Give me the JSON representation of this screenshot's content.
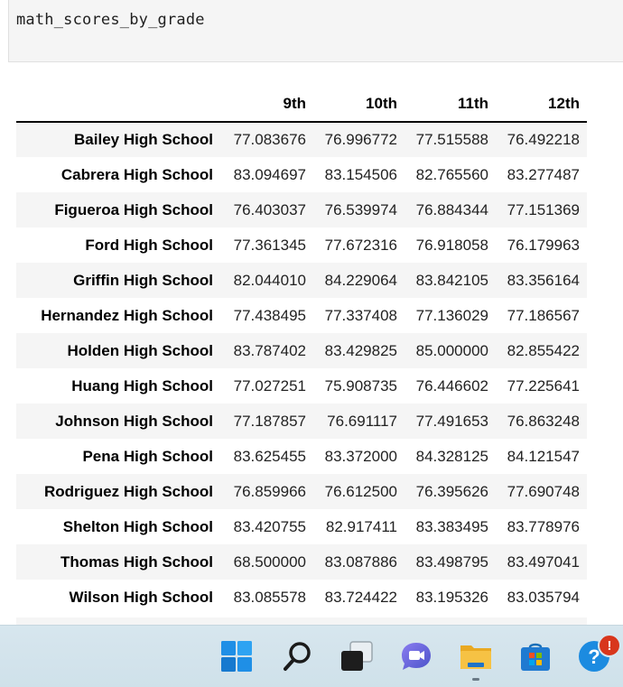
{
  "code_cell": {
    "source": "math_scores_by_grade"
  },
  "table": {
    "columns": [
      "9th",
      "10th",
      "11th",
      "12th"
    ],
    "rows": [
      {
        "school": "Bailey High School",
        "values": [
          "77.083676",
          "76.996772",
          "77.515588",
          "76.492218"
        ]
      },
      {
        "school": "Cabrera High School",
        "values": [
          "83.094697",
          "83.154506",
          "82.765560",
          "83.277487"
        ]
      },
      {
        "school": "Figueroa High School",
        "values": [
          "76.403037",
          "76.539974",
          "76.884344",
          "77.151369"
        ]
      },
      {
        "school": "Ford High School",
        "values": [
          "77.361345",
          "77.672316",
          "76.918058",
          "76.179963"
        ]
      },
      {
        "school": "Griffin High School",
        "values": [
          "82.044010",
          "84.229064",
          "83.842105",
          "83.356164"
        ]
      },
      {
        "school": "Hernandez High School",
        "values": [
          "77.438495",
          "77.337408",
          "77.136029",
          "77.186567"
        ]
      },
      {
        "school": "Holden High School",
        "values": [
          "83.787402",
          "83.429825",
          "85.000000",
          "82.855422"
        ]
      },
      {
        "school": "Huang High School",
        "values": [
          "77.027251",
          "75.908735",
          "76.446602",
          "77.225641"
        ]
      },
      {
        "school": "Johnson High School",
        "values": [
          "77.187857",
          "76.691117",
          "77.491653",
          "76.863248"
        ]
      },
      {
        "school": "Pena High School",
        "values": [
          "83.625455",
          "83.372000",
          "84.328125",
          "84.121547"
        ]
      },
      {
        "school": "Rodriguez High School",
        "values": [
          "76.859966",
          "76.612500",
          "76.395626",
          "77.690748"
        ]
      },
      {
        "school": "Shelton High School",
        "values": [
          "83.420755",
          "82.917411",
          "83.383495",
          "83.778976"
        ]
      },
      {
        "school": "Thomas High School",
        "values": [
          "68.500000",
          "83.087886",
          "83.498795",
          "83.497041"
        ]
      },
      {
        "school": "Wilson High School",
        "values": [
          "83.085578",
          "83.724422",
          "83.195326",
          "83.035794"
        ]
      }
    ]
  },
  "taskbar": {
    "icons": [
      "windows-start-icon",
      "search-icon",
      "task-view-icon",
      "teams-chat-icon",
      "file-explorer-icon",
      "microsoft-store-icon",
      "tips-help-icon"
    ],
    "help_badge": "!",
    "colors": {
      "background": "#d7e6ee",
      "start_blue": "#1a8ce0",
      "folder_yellow": "#f6c244",
      "chat_purple": "#6264d8",
      "badge_red": "#d8361c"
    }
  }
}
